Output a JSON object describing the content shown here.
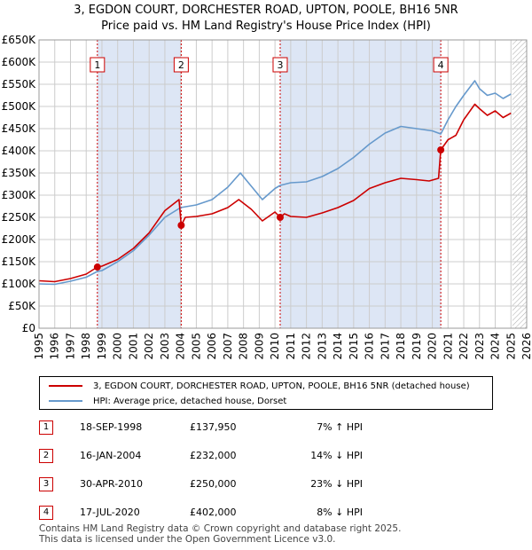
{
  "title_line1": "3, EGDON COURT, DORCHESTER ROAD, UPTON, POOLE, BH16 5NR",
  "title_line2": "Price paid vs. HM Land Registry's House Price Index (HPI)",
  "legend": {
    "property": "3, EGDON COURT, DORCHESTER ROAD, UPTON, POOLE, BH16 5NR (detached house)",
    "hpi": "HPI: Average price, detached house, Dorset"
  },
  "transactions": [
    {
      "num": "1",
      "date": "18-SEP-1998",
      "price": "£137,950",
      "hpi": "7% ↑ HPI"
    },
    {
      "num": "2",
      "date": "16-JAN-2004",
      "price": "£232,000",
      "hpi": "14% ↓ HPI"
    },
    {
      "num": "3",
      "date": "30-APR-2010",
      "price": "£250,000",
      "hpi": "23% ↓ HPI"
    },
    {
      "num": "4",
      "date": "17-JUL-2020",
      "price": "£402,000",
      "hpi": "8% ↓ HPI"
    }
  ],
  "footer": {
    "line1": "Contains HM Land Registry data © Crown copyright and database right 2025.",
    "line2": "This data is licensed under the Open Government Licence v3.0."
  },
  "colors": {
    "property": "#cc0000",
    "hpi": "#6699cc",
    "shade": "#dde6f5",
    "grid": "#cccccc"
  },
  "chart_data": {
    "type": "line",
    "xlim": [
      1995,
      2026
    ],
    "ylim": [
      0,
      650000
    ],
    "x_ticks": [
      "1995",
      "1996",
      "1997",
      "1998",
      "1999",
      "2000",
      "2001",
      "2002",
      "2003",
      "2004",
      "2005",
      "2006",
      "2007",
      "2008",
      "2009",
      "2010",
      "2011",
      "2012",
      "2013",
      "2014",
      "2015",
      "2016",
      "2017",
      "2018",
      "2019",
      "2020",
      "2021",
      "2022",
      "2023",
      "2024",
      "2025",
      "2026"
    ],
    "y_ticks": [
      0,
      50000,
      100000,
      150000,
      200000,
      250000,
      300000,
      350000,
      400000,
      450000,
      500000,
      550000,
      600000,
      650000
    ],
    "y_tick_labels": [
      "£0",
      "£50K",
      "£100K",
      "£150K",
      "£200K",
      "£250K",
      "£300K",
      "£350K",
      "£400K",
      "£450K",
      "£500K",
      "£550K",
      "£600K",
      "£650K"
    ],
    "grid": true,
    "shaded_periods": [
      [
        1998.71,
        2004.04
      ],
      [
        2010.33,
        2020.54
      ]
    ],
    "hatched_from": 2025.1,
    "sale_markers": [
      {
        "label": "1",
        "x": 1998.71,
        "y": 137950
      },
      {
        "label": "2",
        "x": 2004.04,
        "y": 232000
      },
      {
        "label": "3",
        "x": 2010.33,
        "y": 250000
      },
      {
        "label": "4",
        "x": 2020.54,
        "y": 402000
      }
    ],
    "series": [
      {
        "name": "3, EGDON COURT, DORCHESTER ROAD, UPTON, POOLE, BH16 5NR (detached house)",
        "x": [
          1995,
          1996,
          1997,
          1998,
          1998.71,
          1999,
          2000,
          2001,
          2002,
          2003,
          2003.9,
          2004.04,
          2004.3,
          2005,
          2006,
          2007,
          2007.7,
          2008.5,
          2009.2,
          2010,
          2010.33,
          2010.6,
          2011,
          2012,
          2013,
          2014,
          2015,
          2016,
          2017,
          2018,
          2019,
          2019.8,
          2020.4,
          2020.54,
          2021,
          2021.5,
          2022,
          2022.7,
          2023,
          2023.5,
          2024,
          2024.5,
          2025.0
        ],
        "y": [
          107000,
          105000,
          112000,
          122000,
          137950,
          140000,
          155000,
          180000,
          215000,
          265000,
          290000,
          232000,
          250000,
          252000,
          258000,
          272000,
          290000,
          268000,
          242000,
          262000,
          250000,
          258000,
          252000,
          250000,
          260000,
          272000,
          288000,
          315000,
          328000,
          338000,
          335000,
          332000,
          338000,
          402000,
          425000,
          435000,
          470000,
          505000,
          495000,
          480000,
          490000,
          475000,
          485000
        ]
      },
      {
        "name": "HPI: Average price, detached house, Dorset",
        "x": [
          1995,
          1996,
          1997,
          1998,
          1998.71,
          1999,
          2000,
          2001,
          2002,
          2003,
          2004,
          2005,
          2006,
          2007,
          2007.8,
          2008.5,
          2009.2,
          2010,
          2010.33,
          2011,
          2012,
          2013,
          2014,
          2015,
          2016,
          2017,
          2018,
          2019,
          2020,
          2020.54,
          2021,
          2021.5,
          2022,
          2022.7,
          2023,
          2023.5,
          2024,
          2024.5,
          2025.0
        ],
        "y": [
          100000,
          99000,
          106000,
          115000,
          128000,
          130000,
          150000,
          175000,
          210000,
          250000,
          272000,
          278000,
          290000,
          318000,
          350000,
          320000,
          290000,
          315000,
          322000,
          328000,
          330000,
          342000,
          360000,
          385000,
          415000,
          440000,
          455000,
          450000,
          445000,
          438000,
          470000,
          500000,
          525000,
          558000,
          540000,
          525000,
          530000,
          518000,
          528000
        ]
      }
    ]
  }
}
